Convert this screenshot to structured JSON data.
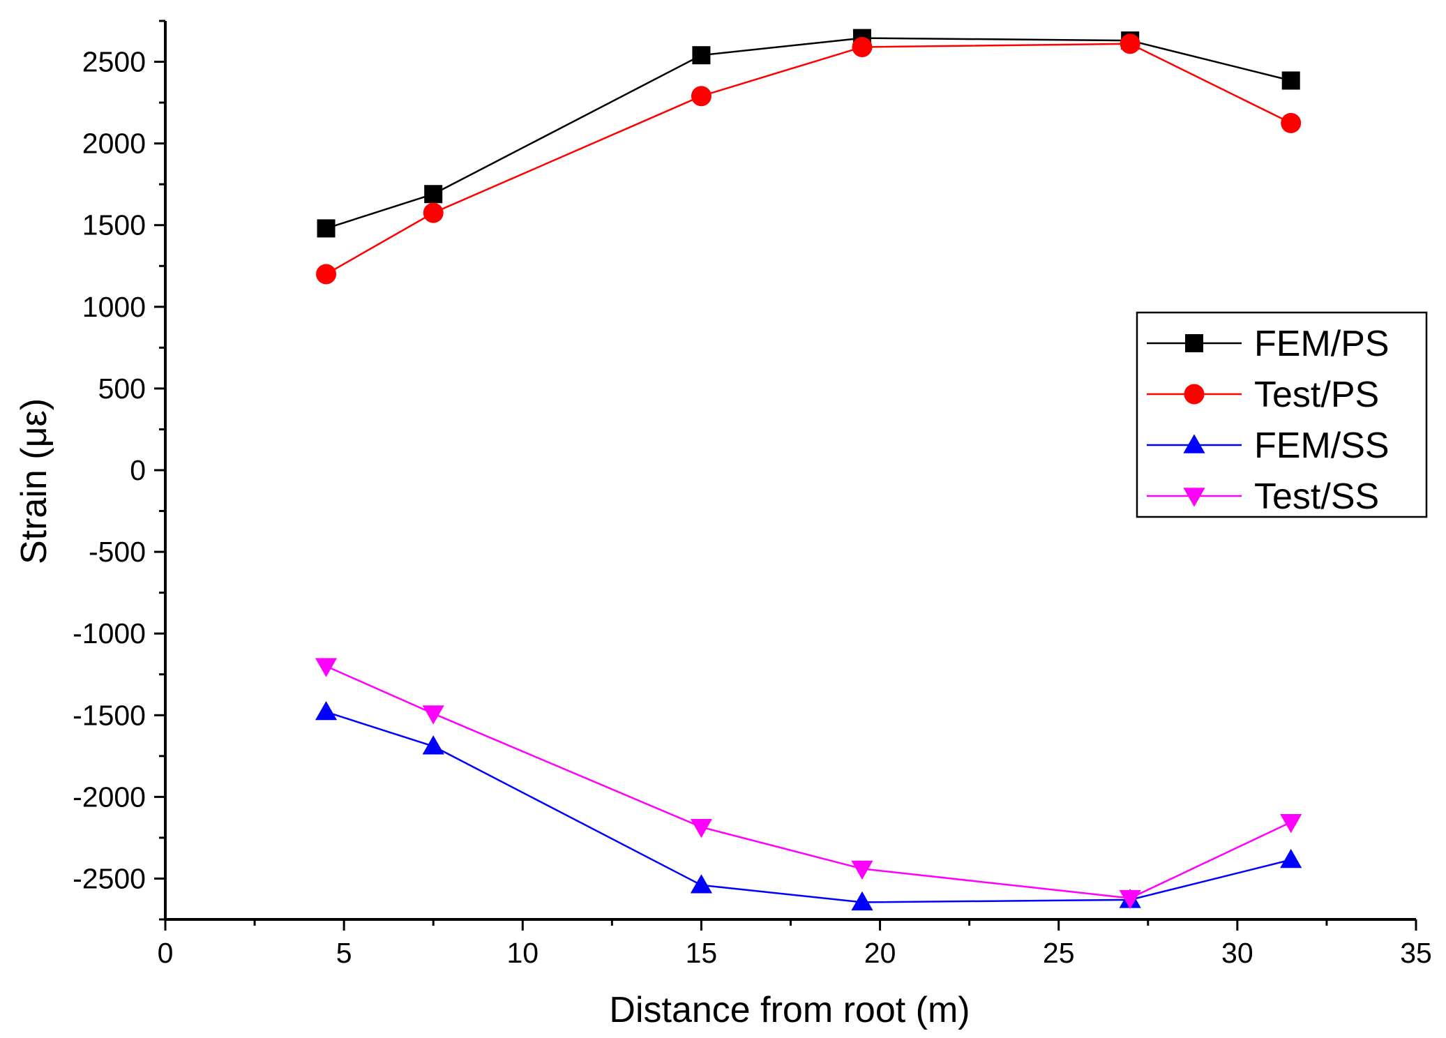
{
  "chart_data": {
    "type": "line",
    "title": "",
    "xlabel": "Distance from root (m)",
    "ylabel": "Strain (με)",
    "xlim": [
      0,
      35
    ],
    "ylim": [
      -2750,
      2750
    ],
    "xticks": [
      0,
      5,
      10,
      15,
      20,
      25,
      30,
      35
    ],
    "xtick_labels": [
      "0",
      "5",
      "10",
      "15",
      "20",
      "25",
      "30",
      "35"
    ],
    "yticks": [
      -2500,
      -2000,
      -1500,
      -1000,
      -500,
      0,
      500,
      1000,
      1500,
      2000,
      2500
    ],
    "ytick_labels": [
      "-2500",
      "-2000",
      "-1500",
      "-1000",
      "-500",
      "0",
      "500",
      "1000",
      "1500",
      "2000",
      "2500"
    ],
    "grid": false,
    "legend_position": "right",
    "x": [
      4.5,
      7.5,
      15,
      19.5,
      27,
      31.5
    ],
    "series": [
      {
        "name": "FEM/PS",
        "color": "#000000",
        "marker": "square",
        "values": [
          1480,
          1690,
          2540,
          2645,
          2630,
          2385
        ]
      },
      {
        "name": "Test/PS",
        "color": "#ff0000",
        "marker": "circle",
        "values": [
          1200,
          1575,
          2290,
          2590,
          2610,
          2125
        ]
      },
      {
        "name": "FEM/SS",
        "color": "#0000ff",
        "marker": "triangle-up",
        "values": [
          -1480,
          -1690,
          -2540,
          -2645,
          -2630,
          -2385
        ]
      },
      {
        "name": "Test/SS",
        "color": "#ff00ff",
        "marker": "triangle-down",
        "values": [
          -1200,
          -1490,
          -2185,
          -2440,
          -2620,
          -2155
        ]
      }
    ]
  }
}
